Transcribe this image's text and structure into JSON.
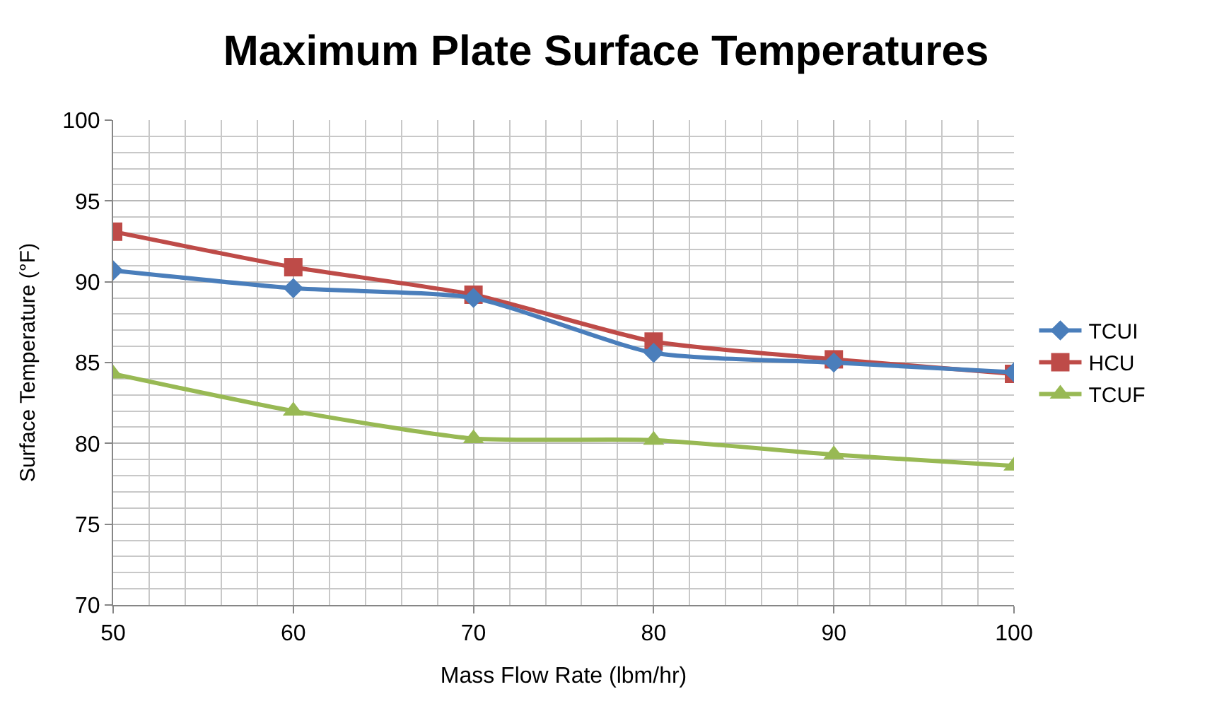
{
  "chart_data": {
    "type": "line",
    "title": "Maximum Plate Surface Temperatures",
    "xlabel": "Mass Flow Rate (lbm/hr)",
    "ylabel": "Surface Temperature (°F)",
    "x": [
      50,
      60,
      70,
      80,
      90,
      100
    ],
    "series": [
      {
        "name": "TCUI",
        "color": "#4a7ebb",
        "marker": "diamond",
        "values": [
          90.7,
          89.6,
          89.0,
          85.6,
          85.0,
          84.4
        ]
      },
      {
        "name": "HCU",
        "color": "#be4b48",
        "marker": "square",
        "values": [
          93.1,
          90.9,
          89.2,
          86.3,
          85.2,
          84.3
        ]
      },
      {
        "name": "TCUF",
        "color": "#98b954",
        "marker": "triangle",
        "values": [
          84.3,
          82.0,
          80.3,
          80.2,
          79.3,
          78.6
        ]
      }
    ],
    "xlim": [
      50,
      100
    ],
    "xticks": [
      50,
      60,
      70,
      80,
      90,
      100
    ],
    "ylim": [
      70,
      100
    ],
    "yticks": [
      70,
      75,
      80,
      85,
      90,
      95,
      100
    ],
    "grid": true,
    "legend": "right",
    "line_style": "solid"
  }
}
